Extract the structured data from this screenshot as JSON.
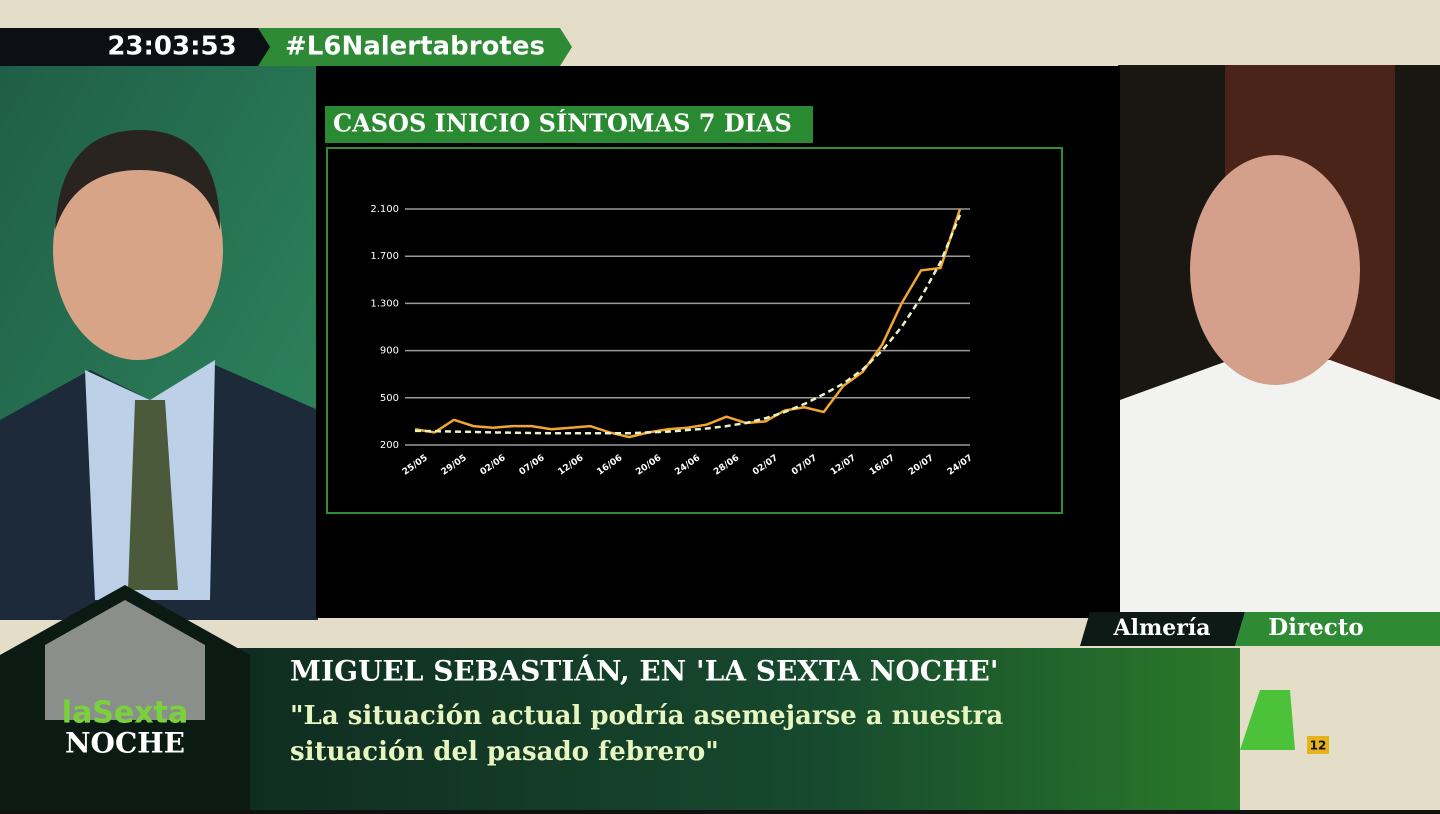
{
  "overlay": {
    "clock": "23:03:53",
    "hashtag": "#L6Nalertabrotes",
    "location": "Almería",
    "live": "Directo",
    "headline": "MIGUEL SEBASTIÁN, EN 'LA SEXTA NOCHE'",
    "quote_line_1": "\"La situación actual podría asemejarse a nuestra",
    "quote_line_2": "situación del pasado febrero\"",
    "logo_top": "laSexta",
    "logo_bottom": "NOCHE",
    "channel_number": "12"
  },
  "chart_data": {
    "type": "line",
    "title": "CASOS INICIO SÍNTOMAS 7 DIAS",
    "categories": [
      "25/05",
      null,
      "29/05",
      null,
      "02/06",
      null,
      "07/06",
      null,
      "12/06",
      null,
      "16/06",
      null,
      "20/06",
      null,
      "24/06",
      null,
      "28/06",
      null,
      "02/07",
      null,
      "07/07",
      null,
      "12/07",
      null,
      "16/07",
      null,
      "20/07",
      null,
      "24/07"
    ],
    "series": [
      {
        "color": "#f2a62e",
        "values": [
          300,
          280,
          360,
          320,
          310,
          320,
          320,
          300,
          310,
          320,
          280,
          250,
          280,
          300,
          310,
          330,
          380,
          340,
          350,
          420,
          440,
          410,
          600,
          720,
          950,
          1300,
          1580,
          1600,
          2100
        ]
      },
      {
        "color": "#e8f2c8",
        "dashed": true,
        "values": [
          290,
          288,
          285,
          283,
          280,
          278,
          276,
          275,
          275,
          275,
          275,
          275,
          280,
          285,
          295,
          305,
          320,
          340,
          370,
          410,
          460,
          530,
          620,
          740,
          900,
          1100,
          1350,
          1650,
          2050
        ]
      }
    ],
    "ylim": [
      200,
      2100
    ],
    "yticks": [
      200,
      500,
      900,
      {
        "value": 1300,
        "label": "1.300"
      },
      {
        "value": 1700,
        "label": "1.700"
      },
      {
        "value": 2100,
        "label": "2.100"
      }
    ],
    "grid": true
  }
}
